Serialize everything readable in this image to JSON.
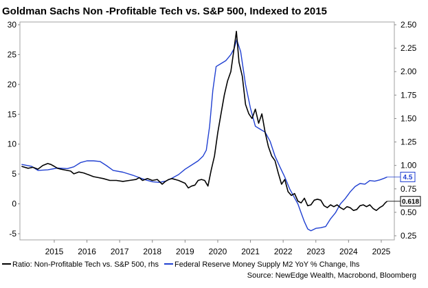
{
  "chart_data": {
    "type": "line",
    "title": "Goldman Sachs Non -Profitable Tech vs. S&P 500, Indexed to 2015",
    "source": "Source: NewEdge Wealth, Macrobond, Bloomberg",
    "x_ticks": [
      "2015",
      "2016",
      "2017",
      "2018",
      "2019",
      "2020",
      "2021",
      "2022",
      "2023",
      "2024",
      "2025"
    ],
    "y_left": {
      "ticks": [
        "30",
        "25",
        "20",
        "15",
        "10",
        "5",
        "0",
        "-5"
      ],
      "ylim": [
        -5,
        30
      ]
    },
    "y_right": {
      "ticks": [
        "2.50",
        "2.25",
        "2.00",
        "1.75",
        "1.50",
        "1.25",
        "1.00",
        "0.75",
        "0.50",
        "0.25"
      ],
      "ylim": [
        0.25,
        2.5
      ]
    },
    "grid": false,
    "legend_position": "bottom",
    "series": [
      {
        "name": "Ratio: Non-Profitable Tech vs. S&P 500, rhs",
        "axis": "right",
        "color": "#000000",
        "last_label": "0.618",
        "points": [
          [
            2014.5,
            0.99
          ],
          [
            2014.7,
            0.97
          ],
          [
            2014.85,
            0.98
          ],
          [
            2015.0,
            0.96
          ],
          [
            2015.15,
            1.0
          ],
          [
            2015.3,
            1.02
          ],
          [
            2015.4,
            1.01
          ],
          [
            2015.5,
            0.99
          ],
          [
            2015.6,
            0.97
          ],
          [
            2015.7,
            0.96
          ],
          [
            2015.85,
            0.95
          ],
          [
            2016.0,
            0.94
          ],
          [
            2016.1,
            0.91
          ],
          [
            2016.25,
            0.93
          ],
          [
            2016.4,
            0.92
          ],
          [
            2016.55,
            0.9
          ],
          [
            2016.7,
            0.88
          ],
          [
            2016.85,
            0.87
          ],
          [
            2017.0,
            0.86
          ],
          [
            2017.2,
            0.84
          ],
          [
            2017.4,
            0.84
          ],
          [
            2017.6,
            0.83
          ],
          [
            2017.8,
            0.84
          ],
          [
            2018.0,
            0.85
          ],
          [
            2018.1,
            0.87
          ],
          [
            2018.2,
            0.84
          ],
          [
            2018.35,
            0.86
          ],
          [
            2018.5,
            0.84
          ],
          [
            2018.65,
            0.85
          ],
          [
            2018.8,
            0.8
          ],
          [
            2018.9,
            0.83
          ],
          [
            2019.0,
            0.85
          ],
          [
            2019.1,
            0.86
          ],
          [
            2019.3,
            0.84
          ],
          [
            2019.5,
            0.81
          ],
          [
            2019.6,
            0.76
          ],
          [
            2019.7,
            0.78
          ],
          [
            2019.8,
            0.79
          ],
          [
            2019.9,
            0.84
          ],
          [
            2020.0,
            0.85
          ],
          [
            2020.1,
            0.84
          ],
          [
            2020.2,
            0.78
          ],
          [
            2020.3,
            0.95
          ],
          [
            2020.4,
            1.1
          ],
          [
            2020.5,
            1.35
          ],
          [
            2020.6,
            1.55
          ],
          [
            2020.7,
            1.75
          ],
          [
            2020.8,
            1.9
          ],
          [
            2020.9,
            2.0
          ],
          [
            2021.0,
            2.25
          ],
          [
            2021.07,
            2.43
          ],
          [
            2021.15,
            2.1
          ],
          [
            2021.25,
            1.95
          ],
          [
            2021.35,
            1.65
          ],
          [
            2021.45,
            1.55
          ],
          [
            2021.55,
            1.5
          ],
          [
            2021.65,
            1.6
          ],
          [
            2021.75,
            1.45
          ],
          [
            2021.85,
            1.55
          ],
          [
            2021.95,
            1.35
          ],
          [
            2022.05,
            1.2
          ],
          [
            2022.15,
            1.1
          ],
          [
            2022.25,
            1.05
          ],
          [
            2022.35,
            0.92
          ],
          [
            2022.45,
            0.8
          ],
          [
            2022.55,
            0.85
          ],
          [
            2022.65,
            0.72
          ],
          [
            2022.75,
            0.68
          ],
          [
            2022.85,
            0.7
          ],
          [
            2022.95,
            0.62
          ],
          [
            2023.05,
            0.6
          ],
          [
            2023.15,
            0.65
          ],
          [
            2023.25,
            0.57
          ],
          [
            2023.35,
            0.58
          ],
          [
            2023.45,
            0.63
          ],
          [
            2023.55,
            0.64
          ],
          [
            2023.65,
            0.63
          ],
          [
            2023.75,
            0.57
          ],
          [
            2023.85,
            0.55
          ],
          [
            2023.95,
            0.58
          ],
          [
            2024.05,
            0.56
          ],
          [
            2024.15,
            0.58
          ],
          [
            2024.25,
            0.55
          ],
          [
            2024.35,
            0.53
          ],
          [
            2024.45,
            0.56
          ],
          [
            2024.55,
            0.55
          ],
          [
            2024.65,
            0.52
          ],
          [
            2024.75,
            0.53
          ],
          [
            2024.85,
            0.57
          ],
          [
            2024.95,
            0.58
          ],
          [
            2025.05,
            0.56
          ],
          [
            2025.15,
            0.58
          ],
          [
            2025.25,
            0.54
          ],
          [
            2025.35,
            0.52
          ],
          [
            2025.45,
            0.55
          ],
          [
            2025.55,
            0.57
          ],
          [
            2025.62,
            0.6
          ],
          [
            2025.68,
            0.618
          ]
        ]
      },
      {
        "name": "Federal Reserve Money Supply M2 YoY % Change, lhs",
        "axis": "left",
        "color": "#1f3fd1",
        "last_label": "4.5",
        "points": [
          [
            2014.5,
            6.6
          ],
          [
            2014.8,
            6.3
          ],
          [
            2015.0,
            5.6
          ],
          [
            2015.3,
            5.7
          ],
          [
            2015.6,
            6.0
          ],
          [
            2015.9,
            5.9
          ],
          [
            2016.1,
            6.2
          ],
          [
            2016.3,
            6.9
          ],
          [
            2016.5,
            7.2
          ],
          [
            2016.7,
            7.2
          ],
          [
            2016.9,
            7.1
          ],
          [
            2017.1,
            6.4
          ],
          [
            2017.3,
            5.6
          ],
          [
            2017.6,
            5.3
          ],
          [
            2017.9,
            4.8
          ],
          [
            2018.1,
            4.4
          ],
          [
            2018.3,
            4.0
          ],
          [
            2018.5,
            3.7
          ],
          [
            2018.7,
            3.6
          ],
          [
            2018.9,
            3.8
          ],
          [
            2019.1,
            4.3
          ],
          [
            2019.3,
            4.9
          ],
          [
            2019.5,
            5.8
          ],
          [
            2019.7,
            6.5
          ],
          [
            2019.9,
            7.2
          ],
          [
            2020.05,
            8.0
          ],
          [
            2020.15,
            9.0
          ],
          [
            2020.25,
            13.0
          ],
          [
            2020.35,
            19.0
          ],
          [
            2020.45,
            23.0
          ],
          [
            2020.6,
            23.5
          ],
          [
            2020.75,
            24.0
          ],
          [
            2020.9,
            25.0
          ],
          [
            2021.0,
            26.0
          ],
          [
            2021.08,
            27.5
          ],
          [
            2021.2,
            25.5
          ],
          [
            2021.35,
            20.0
          ],
          [
            2021.5,
            16.0
          ],
          [
            2021.65,
            13.0
          ],
          [
            2021.8,
            12.5
          ],
          [
            2021.95,
            12.0
          ],
          [
            2022.1,
            10.5
          ],
          [
            2022.25,
            8.0
          ],
          [
            2022.4,
            6.2
          ],
          [
            2022.55,
            4.5
          ],
          [
            2022.7,
            2.5
          ],
          [
            2022.85,
            1.0
          ],
          [
            2022.95,
            0.0
          ],
          [
            2023.05,
            -1.5
          ],
          [
            2023.15,
            -3.0
          ],
          [
            2023.25,
            -4.2
          ],
          [
            2023.35,
            -4.5
          ],
          [
            2023.5,
            -4.1
          ],
          [
            2023.65,
            -4.0
          ],
          [
            2023.8,
            -3.8
          ],
          [
            2023.95,
            -2.5
          ],
          [
            2024.1,
            -1.5
          ],
          [
            2024.25,
            0.0
          ],
          [
            2024.4,
            0.9
          ],
          [
            2024.55,
            2.0
          ],
          [
            2024.7,
            2.9
          ],
          [
            2024.85,
            3.4
          ],
          [
            2025.0,
            3.3
          ],
          [
            2025.15,
            3.9
          ],
          [
            2025.3,
            3.8
          ],
          [
            2025.45,
            4.0
          ],
          [
            2025.6,
            4.3
          ],
          [
            2025.68,
            4.5
          ]
        ]
      }
    ]
  }
}
